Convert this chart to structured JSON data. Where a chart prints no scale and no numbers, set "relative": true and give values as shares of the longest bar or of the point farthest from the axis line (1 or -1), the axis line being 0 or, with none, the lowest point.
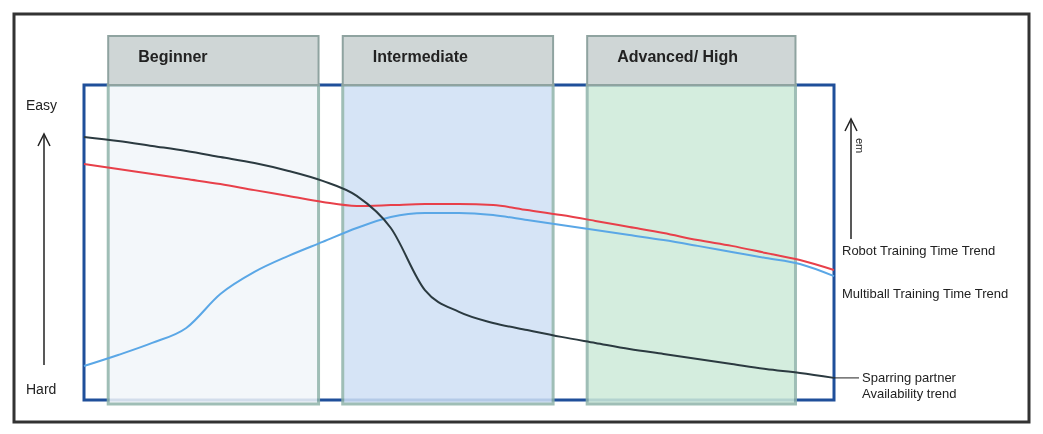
{
  "chart_data": {
    "type": "line",
    "relative": true,
    "categories": [
      null,
      null,
      null,
      null,
      null,
      null,
      null,
      null,
      null,
      null,
      null,
      null,
      null,
      null,
      null,
      null,
      null,
      null,
      null,
      null,
      null,
      null,
      null
    ],
    "series": [
      {
        "name": "Robot Training Time Trend",
        "color": "#e8404a",
        "values": [
          0.897,
          0.878,
          0.859,
          0.84,
          0.821,
          0.798,
          0.776,
          0.753,
          0.738,
          0.741,
          0.745,
          0.745,
          0.741,
          0.722,
          0.703,
          0.681,
          0.658,
          0.635,
          0.608,
          0.586,
          0.559,
          0.532,
          0.494
        ]
      },
      {
        "name": "Multiball Training Time Trend",
        "color": "#5aa7e6",
        "values": [
          0.129,
          0.171,
          0.217,
          0.274,
          0.403,
          0.487,
          0.548,
          0.601,
          0.654,
          0.696,
          0.711,
          0.711,
          0.703,
          0.684,
          0.665,
          0.646,
          0.627,
          0.608,
          0.586,
          0.563,
          0.54,
          0.517,
          0.471
        ]
      },
      {
        "name": "Sparring partner Availability trend",
        "color": "#2b3a40",
        "values": [
          1.0,
          0.985,
          0.966,
          0.947,
          0.924,
          0.901,
          0.871,
          0.833,
          0.776,
          0.654,
          0.418,
          0.335,
          0.293,
          0.266,
          0.24,
          0.217,
          0.194,
          0.175,
          0.156,
          0.137,
          0.118,
          0.103,
          0.084
        ]
      }
    ],
    "annotations": [
      "Easy",
      "Hard",
      "em",
      "Beginner",
      "Intermediate",
      "Advanced/ High"
    ],
    "legend": false,
    "grid": false,
    "marker": "none",
    "line_style": "solid"
  }
}
